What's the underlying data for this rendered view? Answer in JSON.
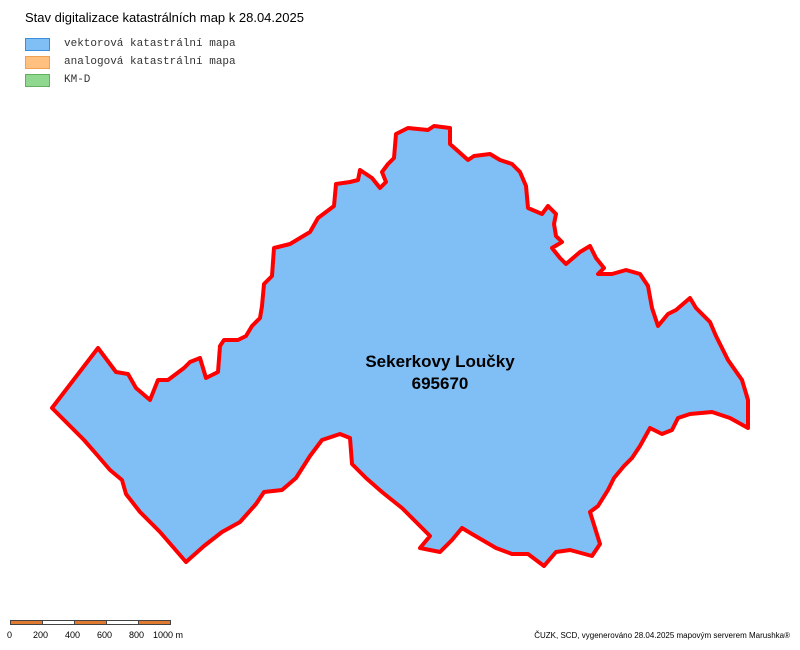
{
  "title": "Stav digitalizace katastrálních map k 28.04.2025",
  "legend": [
    {
      "label": "vektorová katastrální mapa",
      "fill": "#7fbff5",
      "stroke": "#3b8fd9"
    },
    {
      "label": "analogová katastrální mapa",
      "fill": "#ffc080",
      "stroke": "#f0a050"
    },
    {
      "label": "KM-D",
      "fill": "#90d890",
      "stroke": "#60b060"
    }
  ],
  "area": {
    "name": "Sekerkovy Loučky",
    "code": "695670",
    "fill": "#80bff5",
    "border_color": "#ff0000"
  },
  "scale": {
    "ticks": [
      "0",
      "200",
      "400",
      "600",
      "800",
      "1000 m"
    ],
    "colors": [
      "#e07a30",
      "#ffffff"
    ]
  },
  "credit": "ČUZK, SCD, vygenerováno 28.04.2025 mapovým serverem Marushka®"
}
